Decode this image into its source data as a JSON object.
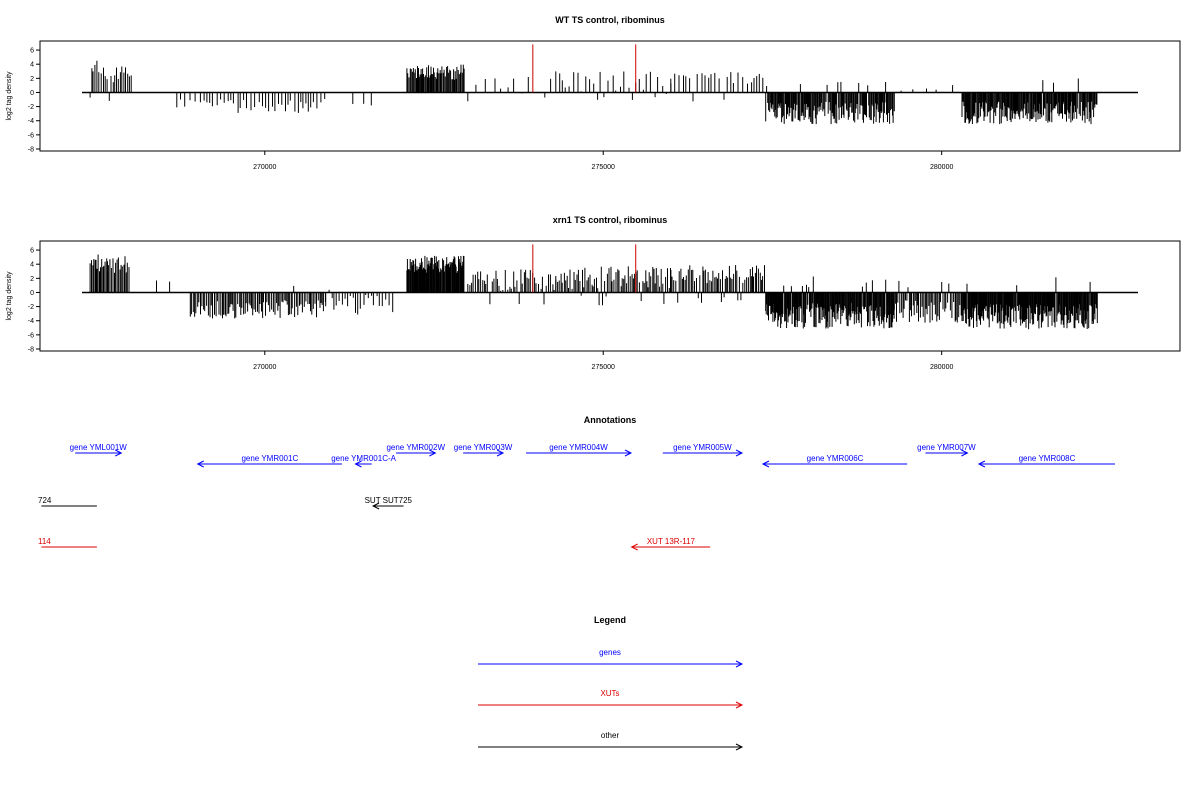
{
  "chart_data": [
    {
      "type": "bar",
      "title": "WT TS control, ribominus",
      "ylabel": "log2 tag density",
      "xlim": [
        267300,
        282900
      ],
      "ylim": [
        -8,
        7
      ],
      "yticks": [
        6,
        4,
        2,
        0,
        -2,
        -4,
        -6,
        -8
      ],
      "xticks": [
        270000,
        275000,
        280000
      ],
      "xtick_labels": [
        "270000",
        "275000",
        "280000"
      ],
      "grid": false,
      "colors": {
        "bars": "#000000",
        "highlight": "#cc0000"
      },
      "segments": [
        {
          "x0": 267420,
          "x1": 268000,
          "mean": 3.0,
          "spread": 1.6,
          "step": 25,
          "flip": 0.02
        },
        {
          "x0": 268000,
          "x1": 268060,
          "mean": 2.5,
          "spread": 0.3,
          "step": 30,
          "flip": 0
        },
        {
          "x0": 268700,
          "x1": 269400,
          "mean": -1.6,
          "spread": 0.8,
          "step": 60,
          "flip": 0
        },
        {
          "x0": 269400,
          "x1": 270900,
          "mean": -1.9,
          "spread": 1.0,
          "step": 50,
          "flip": 0
        },
        {
          "x0": 271300,
          "x1": 271700,
          "mean": -1.5,
          "spread": 0.6,
          "step": 120,
          "flip": 0
        },
        {
          "x0": 272100,
          "x1": 272950,
          "mean": 2.9,
          "spread": 1.1,
          "step": 14,
          "flip": 0
        },
        {
          "x0": 273000,
          "x1": 274300,
          "mean": 1.3,
          "spread": 1.5,
          "step": 110,
          "flip": 0.1
        },
        {
          "x0": 274300,
          "x1": 276000,
          "mean": 1.5,
          "spread": 1.5,
          "step": 55,
          "flip": 0.1
        },
        {
          "x0": 276000,
          "x1": 277400,
          "mean": 1.9,
          "spread": 1.0,
          "step": 55,
          "flip": 0.05
        },
        {
          "x0": 277400,
          "x1": 279300,
          "mean": -2.9,
          "spread": 1.6,
          "step": 13,
          "flip": 0.03
        },
        {
          "x0": 279400,
          "x1": 280200,
          "mean": 0.8,
          "spread": 0.6,
          "step": 180,
          "flip": 0
        },
        {
          "x0": 280300,
          "x1": 282300,
          "mean": -2.9,
          "spread": 1.6,
          "step": 12,
          "flip": 0.02
        }
      ],
      "highlights": [
        {
          "x": 273960,
          "y": 6.8
        },
        {
          "x": 275480,
          "y": 6.8
        }
      ]
    },
    {
      "type": "bar",
      "title": "xrn1 TS control, ribominus",
      "ylabel": "log2 tag density",
      "xlim": [
        267300,
        282900
      ],
      "ylim": [
        -8,
        7
      ],
      "yticks": [
        6,
        4,
        2,
        0,
        -2,
        -4,
        -6,
        -8
      ],
      "xticks": [
        270000,
        275000,
        280000
      ],
      "xtick_labels": [
        "270000",
        "275000",
        "280000"
      ],
      "grid": false,
      "colors": {
        "bars": "#000000",
        "highlight": "#cc0000"
      },
      "segments": [
        {
          "x0": 267420,
          "x1": 268000,
          "mean": 4.0,
          "spread": 1.4,
          "step": 18,
          "flip": 0.02
        },
        {
          "x0": 268400,
          "x1": 268700,
          "mean": 1.6,
          "spread": 0.3,
          "step": 140,
          "flip": 0
        },
        {
          "x0": 268900,
          "x1": 270900,
          "mean": -2.4,
          "spread": 1.3,
          "step": 22,
          "flip": 0.02
        },
        {
          "x0": 270900,
          "x1": 271900,
          "mean": -1.8,
          "spread": 1.5,
          "step": 40,
          "flip": 0.05
        },
        {
          "x0": 272100,
          "x1": 272950,
          "mean": 3.9,
          "spread": 1.3,
          "step": 10,
          "flip": 0
        },
        {
          "x0": 273000,
          "x1": 274300,
          "mean": 1.8,
          "spread": 1.6,
          "step": 28,
          "flip": 0.12
        },
        {
          "x0": 274300,
          "x1": 276000,
          "mean": 2.1,
          "spread": 1.6,
          "step": 24,
          "flip": 0.1
        },
        {
          "x0": 276000,
          "x1": 277400,
          "mean": 2.6,
          "spread": 1.3,
          "step": 22,
          "flip": 0.06
        },
        {
          "x0": 277400,
          "x1": 279300,
          "mean": -3.3,
          "spread": 1.8,
          "step": 10,
          "flip": 0.05
        },
        {
          "x0": 279300,
          "x1": 280300,
          "mean": -2.7,
          "spread": 1.6,
          "step": 20,
          "flip": 0.15
        },
        {
          "x0": 280300,
          "x1": 282300,
          "mean": -3.4,
          "spread": 1.8,
          "step": 10,
          "flip": 0.03
        }
      ],
      "highlights": [
        {
          "x": 273960,
          "y": 6.8
        },
        {
          "x": 275480,
          "y": 6.8
        }
      ]
    }
  ],
  "annotations": {
    "title": "Annotations",
    "features": [
      {
        "label": "gene YML001W",
        "color": "#0000ff",
        "x0": 267200,
        "x1": 267880,
        "dir": "right",
        "row": 0
      },
      {
        "label": "gene YMR001C",
        "color": "#0000ff",
        "x0": 269010,
        "x1": 271140,
        "dir": "left",
        "row": 1
      },
      {
        "label": "gene YMR001C-A",
        "color": "#0000ff",
        "x0": 271340,
        "x1": 271580,
        "dir": "left",
        "row": 1
      },
      {
        "label": "gene YMR002W",
        "color": "#0000ff",
        "x0": 271940,
        "x1": 272520,
        "dir": "right",
        "row": 0
      },
      {
        "label": "gene YMR003W",
        "color": "#0000ff",
        "x0": 272930,
        "x1": 273520,
        "dir": "right",
        "row": 0
      },
      {
        "label": "gene YMR004W",
        "color": "#0000ff",
        "x0": 273860,
        "x1": 275410,
        "dir": "right",
        "row": 0
      },
      {
        "label": "gene YMR005W",
        "color": "#0000ff",
        "x0": 275880,
        "x1": 277050,
        "dir": "right",
        "row": 0
      },
      {
        "label": "gene YMR006C",
        "color": "#0000ff",
        "x0": 277360,
        "x1": 279490,
        "dir": "left",
        "row": 1
      },
      {
        "label": "gene YMR007W",
        "color": "#0000ff",
        "x0": 279760,
        "x1": 280380,
        "dir": "right",
        "row": 0
      },
      {
        "label": "gene YMR008C",
        "color": "#0000ff",
        "x0": 280550,
        "x1": 282560,
        "dir": "left",
        "row": 1
      },
      {
        "label": "724",
        "color": "#000000",
        "x0": 266700,
        "x1": 267520,
        "dir": "none",
        "row": 2,
        "label_at": "start"
      },
      {
        "label": "SUT SUT725",
        "color": "#000000",
        "x0": 271600,
        "x1": 272050,
        "dir": "left",
        "row": 2
      },
      {
        "label": "114",
        "color": "#dd0000",
        "x0": 266700,
        "x1": 267520,
        "dir": "none",
        "row": 3,
        "label_at": "start"
      },
      {
        "label": "XUT 13R-117",
        "color": "#dd0000",
        "x0": 275420,
        "x1": 276580,
        "dir": "left",
        "row": 3
      }
    ]
  },
  "legend": {
    "title": "Legend",
    "items": [
      {
        "label": "genes",
        "color": "#0000ff"
      },
      {
        "label": "XUTs",
        "color": "#dd0000"
      },
      {
        "label": "other",
        "color": "#000000"
      }
    ]
  }
}
